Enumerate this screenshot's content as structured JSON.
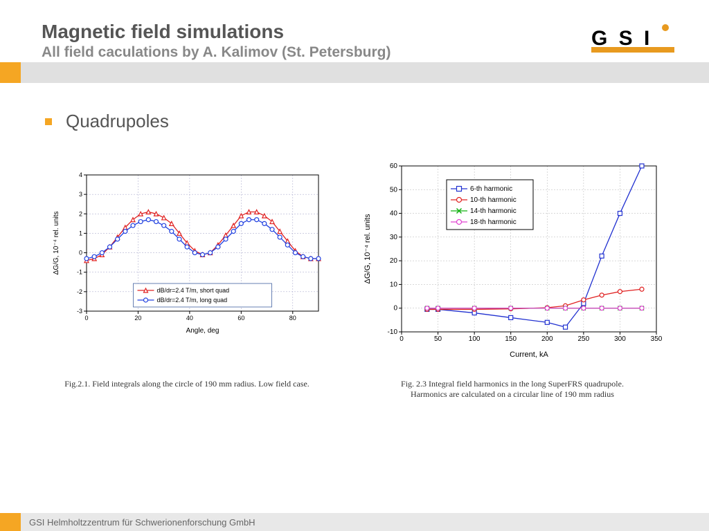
{
  "header": {
    "title": "Magnetic field simulations",
    "subtitle": "All field caculations by A. Kalimov (St. Petersburg)"
  },
  "bullet": {
    "text": "Quadrupoles"
  },
  "logo": {
    "text": "GSI",
    "bar_color": "#000000",
    "accent_color": "#e89a1f"
  },
  "chart_left": {
    "type": "line",
    "xlabel": "Angle, deg",
    "ylabel": "ΔG/G,  10⁻⁴ rel. units",
    "xlim": [
      0,
      90
    ],
    "xtick_step": 20,
    "ylim": [
      -3,
      4
    ],
    "ytick_step": 1,
    "grid_color": "#b0b0d0",
    "axis_color": "#000000",
    "label_fontsize": 10,
    "tick_fontsize": 9,
    "legend": {
      "position": "bottom-center-inside",
      "border_color": "#4060a0",
      "items": [
        {
          "label": "dB/dr=2.4 T/m, short quad",
          "color": "#e02020",
          "marker": "triangle"
        },
        {
          "label": "dB/dr=2.4 T/m, long quad",
          "color": "#2040e0",
          "marker": "circle"
        }
      ]
    },
    "series": [
      {
        "name": "short",
        "color": "#e02020",
        "marker": "triangle",
        "x": [
          0,
          3,
          6,
          9,
          12,
          15,
          18,
          21,
          24,
          27,
          30,
          33,
          36,
          39,
          42,
          45,
          48,
          51,
          54,
          57,
          60,
          63,
          66,
          69,
          72,
          75,
          78,
          81,
          84,
          87,
          90
        ],
        "y": [
          -0.4,
          -0.3,
          -0.1,
          0.3,
          0.8,
          1.3,
          1.7,
          2.0,
          2.1,
          2.0,
          1.8,
          1.5,
          1.0,
          0.5,
          0.1,
          -0.1,
          0.0,
          0.4,
          0.9,
          1.4,
          1.9,
          2.1,
          2.1,
          1.9,
          1.6,
          1.1,
          0.6,
          0.1,
          -0.2,
          -0.3,
          -0.3
        ]
      },
      {
        "name": "long",
        "color": "#2040e0",
        "marker": "circle",
        "x": [
          0,
          3,
          6,
          9,
          12,
          15,
          18,
          21,
          24,
          27,
          30,
          33,
          36,
          39,
          42,
          45,
          48,
          51,
          54,
          57,
          60,
          63,
          66,
          69,
          72,
          75,
          78,
          81,
          84,
          87,
          90
        ],
        "y": [
          -0.3,
          -0.2,
          0.0,
          0.3,
          0.7,
          1.1,
          1.4,
          1.6,
          1.7,
          1.6,
          1.4,
          1.1,
          0.7,
          0.3,
          0.0,
          -0.1,
          0.0,
          0.3,
          0.7,
          1.1,
          1.5,
          1.7,
          1.7,
          1.5,
          1.2,
          0.8,
          0.4,
          0.0,
          -0.2,
          -0.3,
          -0.3
        ]
      }
    ]
  },
  "chart_right": {
    "type": "line",
    "xlabel": "Current, kA",
    "ylabel": "ΔG/G, 10⁻⁴ rel. units",
    "xlim": [
      0,
      350
    ],
    "xtick_step": 50,
    "ylim": [
      -10,
      60
    ],
    "ytick_step": 10,
    "grid_color": "#c0c0c0",
    "axis_color": "#000000",
    "label_fontsize": 11,
    "tick_fontsize": 10,
    "legend": {
      "position": "top-left-inside",
      "border_color": "#000000",
      "items": [
        {
          "label": "6-th harmonic",
          "color": "#2030d0",
          "marker": "square"
        },
        {
          "label": "10-th harmonic",
          "color": "#e02020",
          "marker": "circle"
        },
        {
          "label": "14-th harmonic",
          "color": "#10b010",
          "marker": "x"
        },
        {
          "label": "18-th harmonic",
          "color": "#e040d0",
          "marker": "circle-open"
        }
      ]
    },
    "series": [
      {
        "name": "6th",
        "color": "#2030d0",
        "marker": "square",
        "x": [
          35,
          50,
          100,
          150,
          200,
          225,
          250,
          275,
          300,
          330
        ],
        "y": [
          -0.5,
          -0.5,
          -2,
          -4,
          -6,
          -8,
          2,
          22,
          40,
          60
        ]
      },
      {
        "name": "10th",
        "color": "#e02020",
        "marker": "circle",
        "x": [
          35,
          50,
          100,
          150,
          200,
          225,
          250,
          275,
          300,
          330
        ],
        "y": [
          -0.5,
          -0.5,
          -0.5,
          -0.3,
          0.2,
          1,
          3.5,
          5.5,
          7,
          8
        ]
      },
      {
        "name": "14th",
        "color": "#10b010",
        "marker": "x",
        "x": [
          35,
          50,
          100,
          150,
          200,
          225,
          250,
          275,
          300,
          330
        ],
        "y": [
          0,
          0,
          0,
          0,
          0,
          0,
          0,
          0,
          0,
          0
        ]
      },
      {
        "name": "18th",
        "color": "#e040d0",
        "marker": "circle-open",
        "x": [
          35,
          50,
          100,
          150,
          200,
          225,
          250,
          275,
          300,
          330
        ],
        "y": [
          0,
          0,
          0,
          0,
          0,
          0,
          0,
          0,
          0,
          0
        ]
      }
    ]
  },
  "captions": {
    "left": "Fig.2.1. Field integrals along the circle of 190 mm radius. Low field case.",
    "right": "Fig. 2.3 Integral field harmonics in the long SuperFRS quadrupole.\nHarmonics are calculated on a circular line of 190 mm radius"
  },
  "footer": {
    "text": "GSI Helmholtzzentrum für Schwerionenforschung GmbH"
  }
}
